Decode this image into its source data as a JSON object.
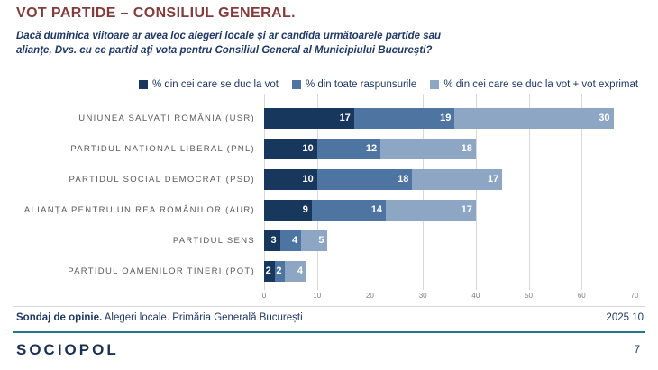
{
  "header": {
    "title": "VOT PARTIDE – CONSILIUL GENERAL.",
    "subtitle": "Dacă duminica viitoare ar avea loc alegeri locale şi ar candida următoarele partide sau alianţe, Dvs. cu ce partid aţi vota pentru Consiliul General al Municipiului Bucureşti?"
  },
  "chart_data": {
    "type": "bar",
    "orientation": "horizontal",
    "stacked": true,
    "title": "VOT PARTIDE – CONSILIUL GENERAL.",
    "categories": [
      "UNIUNEA SALVAȚI ROMÂNIA (USR)",
      "PARTIDUL NAȚIONAL LIBERAL (PNL)",
      "PARTIDUL SOCIAL DEMOCRAT (PSD)",
      "ALIANȚA PENTRU UNIREA ROMÂNILOR (AUR)",
      "PARTIDUL SENS",
      "PARTIDUL OAMENILOR TINERI (POT)"
    ],
    "series": [
      {
        "name": "% din cei care se duc la vot",
        "color": "#17375d",
        "values": [
          17,
          10,
          10,
          9,
          3,
          2
        ]
      },
      {
        "name": "% din toate raspunsurile",
        "color": "#4e74a2",
        "values": [
          19,
          12,
          18,
          14,
          4,
          2
        ]
      },
      {
        "name": "% din cei care se duc la vot + vot exprimat",
        "color": "#8da6c4",
        "values": [
          30,
          18,
          17,
          17,
          5,
          4
        ]
      }
    ],
    "xlim": [
      0,
      70
    ],
    "xticks": [
      0,
      10,
      20,
      30,
      40,
      50,
      60,
      70
    ],
    "grid": true,
    "legend_position": "top",
    "value_labels": "inside-end-white-bold"
  },
  "footer": {
    "left_bold": "Sondaj de opinie.",
    "left_rest": " Alegeri locale. Primăria Generală București",
    "right": "2025 10",
    "logo": "SOCIOPOL",
    "page_number": "7"
  },
  "colors": {
    "title": "#833c3c",
    "navy_text": "#1f3864",
    "category_label": "#595959",
    "gridline": "#d9d9d9",
    "teal_rule": "#1f7a85",
    "logo": "#1b3153"
  }
}
